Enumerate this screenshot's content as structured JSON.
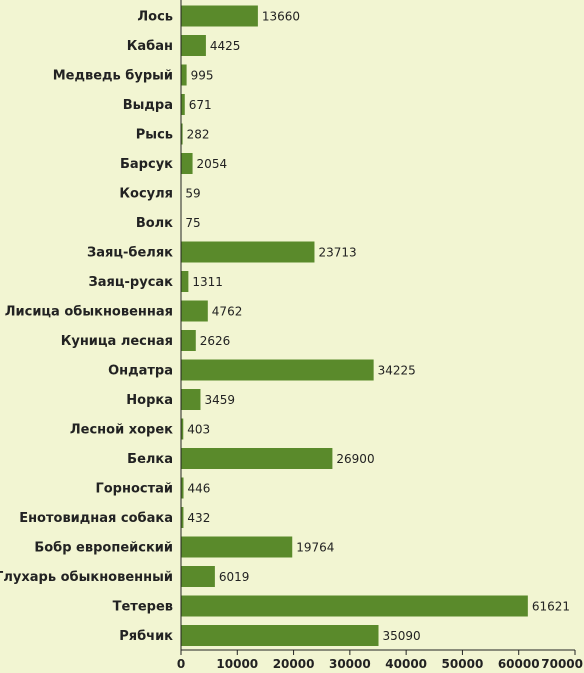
{
  "chart_data": {
    "type": "bar",
    "orientation": "horizontal",
    "categories": [
      "Лось",
      "Кабан",
      "Медведь бурый",
      "Выдра",
      "Рысь",
      "Барсук",
      "Косуля",
      "Волк",
      "Заяц-беляк",
      "Заяц-русак",
      "Лисица обыкновенная",
      "Куница лесная",
      "Ондатра",
      "Норка",
      "Лесной хорек",
      "Белка",
      "Горностай",
      "Енотовидная собака",
      "Бобр европейский",
      "Глухарь обыкновенный",
      "Тетерев",
      "Рябчик"
    ],
    "values": [
      13660,
      4425,
      995,
      671,
      282,
      2054,
      59,
      75,
      23713,
      1311,
      4762,
      2626,
      34225,
      3459,
      403,
      26900,
      446,
      432,
      19764,
      6019,
      61621,
      35090
    ],
    "value_labels": [
      "13660",
      "4425",
      "995",
      "671",
      "282",
      "2054",
      "59",
      "75",
      "23713",
      "1311",
      "4762",
      "2626",
      "34225",
      "3459",
      "403",
      "26900",
      "446",
      "432",
      "19764",
      "6019",
      "61621",
      "35090"
    ],
    "xlim": [
      0,
      70000
    ],
    "xticks": [
      0,
      10000,
      20000,
      30000,
      40000,
      50000,
      60000,
      70000
    ],
    "xtick_labels": [
      "0",
      "10000",
      "20000",
      "30000",
      "40000",
      "50000",
      "60000",
      "70000"
    ],
    "bar_color": "#5a8a2b",
    "background_color": "#f2f5d2",
    "grid": false,
    "legend": "none"
  }
}
